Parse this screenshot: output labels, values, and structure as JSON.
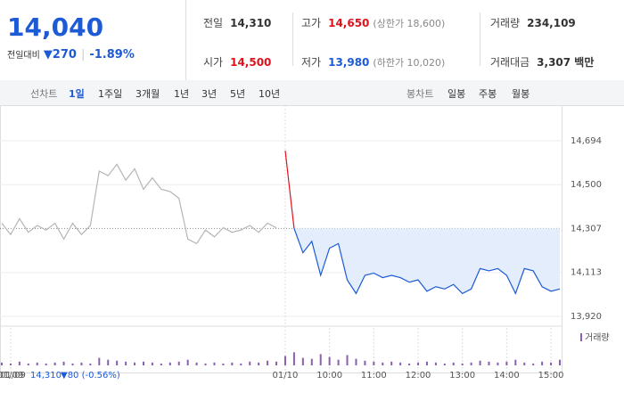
{
  "header": {
    "price": "14,040",
    "change_label": "전일대비",
    "change": "▼270",
    "change_pct": "-1.89%",
    "stats": [
      {
        "label": "전일",
        "value": "14,310"
      },
      {
        "label": "고가",
        "value": "14,650",
        "note": "(상한가 18,600)"
      },
      {
        "label": "거래량",
        "value": "234,109"
      },
      {
        "label": "시가",
        "value": "14,500"
      },
      {
        "label": "저가",
        "value": "13,980",
        "note": "(하한가 10,020)"
      },
      {
        "label": "거래대금",
        "value": "3,307 백만"
      }
    ]
  },
  "tabs": {
    "line_label": "선차트",
    "line": [
      "1일",
      "1주일",
      "3개월",
      "1년",
      "3년",
      "5년",
      "10년"
    ],
    "candle_label": "봉차트",
    "candle": [
      "일봉",
      "주봉",
      "월봉"
    ]
  },
  "chart_data": {
    "type": "line",
    "x": [
      null,
      "01/09",
      null,
      null,
      null,
      null,
      null,
      null,
      null,
      null,
      null,
      null,
      null,
      null,
      null,
      null,
      null,
      null,
      null,
      null,
      null,
      null,
      null,
      null,
      null,
      null,
      null,
      null,
      null,
      null,
      null,
      null,
      "01/10",
      null,
      null,
      null,
      null,
      "10:00",
      null,
      null,
      null,
      null,
      "11:00",
      null,
      null,
      null,
      null,
      "12:00",
      null,
      null,
      null,
      null,
      "13:00",
      null,
      null,
      null,
      null,
      "14:00",
      null,
      null,
      null,
      null,
      "15:00",
      null
    ],
    "series": [
      {
        "color": "#b5b5b5",
        "values": [
          14330,
          14280,
          14350,
          14290,
          14320,
          14300,
          14330,
          14260,
          14330,
          14280,
          14320,
          14560,
          14540,
          14590,
          14520,
          14570,
          14480,
          14530,
          14480,
          14470,
          14440,
          14260,
          14240,
          14300,
          14270,
          14310,
          14290,
          14300,
          14320,
          14290,
          14330,
          14310,
          null,
          null,
          null,
          null,
          null,
          null,
          null,
          null,
          null,
          null,
          null,
          null,
          null,
          null,
          null,
          null,
          null,
          null,
          null,
          null,
          null,
          null,
          null,
          null,
          null,
          null,
          null,
          null,
          null,
          null,
          null,
          null
        ]
      },
      {
        "color": "#e0121c",
        "values": [
          null,
          null,
          null,
          null,
          null,
          null,
          null,
          null,
          null,
          null,
          null,
          null,
          null,
          null,
          null,
          null,
          null,
          null,
          null,
          null,
          null,
          null,
          null,
          null,
          null,
          null,
          null,
          null,
          null,
          null,
          null,
          null,
          14650,
          14307,
          null,
          null,
          null,
          null,
          null,
          null,
          null,
          null,
          null,
          null,
          null,
          null,
          null,
          null,
          null,
          null,
          null,
          null,
          null,
          null,
          null,
          null,
          null,
          null,
          null,
          null,
          null,
          null,
          null,
          null
        ]
      },
      {
        "color": "#1c5ad6",
        "values": [
          null,
          null,
          null,
          null,
          null,
          null,
          null,
          null,
          null,
          null,
          null,
          null,
          null,
          null,
          null,
          null,
          null,
          null,
          null,
          null,
          null,
          null,
          null,
          null,
          null,
          null,
          null,
          null,
          null,
          null,
          null,
          null,
          null,
          14307,
          14200,
          14250,
          14100,
          14220,
          14240,
          14080,
          14020,
          14100,
          14110,
          14090,
          14100,
          14090,
          14070,
          14080,
          14030,
          14050,
          14040,
          14060,
          14020,
          14040,
          14130,
          14120,
          14130,
          14100,
          14020,
          14130,
          14120,
          14050,
          14030,
          14040
        ]
      },
      {
        "name": "거래량",
        "axis": "y2",
        "color": "#8a5fb3",
        "values": [
          3,
          2,
          4,
          2,
          3,
          2,
          3,
          4,
          2,
          3,
          2,
          8,
          6,
          5,
          4,
          3,
          4,
          3,
          2,
          3,
          4,
          6,
          3,
          2,
          3,
          2,
          3,
          2,
          4,
          3,
          5,
          4,
          10,
          14,
          8,
          7,
          12,
          9,
          6,
          11,
          7,
          5,
          4,
          3,
          4,
          3,
          2,
          3,
          4,
          3,
          2,
          3,
          2,
          3,
          5,
          4,
          3,
          4,
          6,
          3,
          2,
          4,
          3,
          6
        ]
      }
    ],
    "ylim": [
      13880,
      14725
    ],
    "yticks": [
      {
        "value": 13920,
        "label": "13,920"
      },
      {
        "value": 14113,
        "label": "14,113"
      },
      {
        "value": 14307,
        "label": "14,307"
      },
      {
        "value": 14500,
        "label": "14,500"
      },
      {
        "value": 14694,
        "label": "14,694"
      }
    ],
    "y2lim": [
      0,
      40
    ],
    "footer": {
      "prev_price": "14,310",
      "prev_change": "▼80 (-0.56%)"
    }
  }
}
